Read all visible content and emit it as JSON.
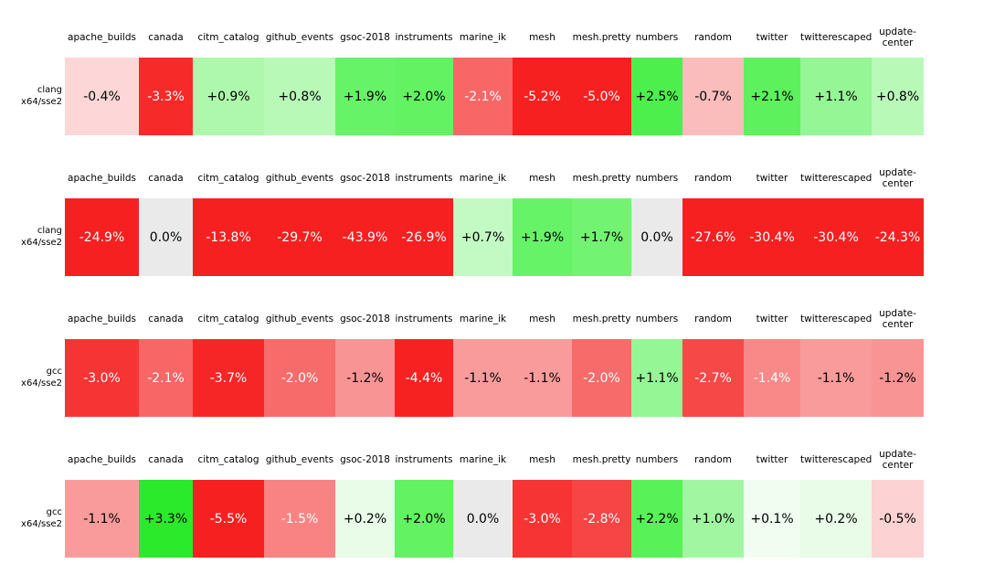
{
  "columns": [
    "apache_builds",
    "canada",
    "citm_catalog",
    "github_events",
    "gsoc-2018",
    "instruments",
    "marine_ik",
    "mesh",
    "mesh.pretty",
    "numbers",
    "random",
    "twitter",
    "twitterescaped",
    "update-center"
  ],
  "tables": [
    {
      "row_label_lines": [
        "clang",
        "x64/sse2"
      ],
      "cells": [
        {
          "text": "-0.4%",
          "bg": "#fdd7d7",
          "fg": "#000000"
        },
        {
          "text": "-3.3%",
          "bg": "#f72a2a",
          "fg": "#ffffff"
        },
        {
          "text": "+0.9%",
          "bg": "#adf8ad",
          "fg": "#000000"
        },
        {
          "text": "+0.8%",
          "bg": "#b8f9b8",
          "fg": "#000000"
        },
        {
          "text": "+1.9%",
          "bg": "#67f367",
          "fg": "#000000"
        },
        {
          "text": "+2.0%",
          "bg": "#62f262",
          "fg": "#000000"
        },
        {
          "text": "-2.1%",
          "bg": "#f86666",
          "fg": "#ffffff"
        },
        {
          "text": "-5.2%",
          "bg": "#f62020",
          "fg": "#ffffff"
        },
        {
          "text": "-5.0%",
          "bg": "#f62020",
          "fg": "#ffffff"
        },
        {
          "text": "+2.5%",
          "bg": "#4def4d",
          "fg": "#000000"
        },
        {
          "text": "-0.7%",
          "bg": "#fbbcbc",
          "fg": "#000000"
        },
        {
          "text": "+2.1%",
          "bg": "#5df15d",
          "fg": "#000000"
        },
        {
          "text": "+1.1%",
          "bg": "#95f695",
          "fg": "#000000"
        },
        {
          "text": "+0.8%",
          "bg": "#b8f9b8",
          "fg": "#000000"
        }
      ]
    },
    {
      "row_label_lines": [
        "clang",
        "x64/sse2"
      ],
      "cells": [
        {
          "text": "-24.9%",
          "bg": "#f62020",
          "fg": "#ffffff"
        },
        {
          "text": "0.0%",
          "bg": "#eaeaea",
          "fg": "#000000"
        },
        {
          "text": "-13.8%",
          "bg": "#f62020",
          "fg": "#ffffff"
        },
        {
          "text": "-29.7%",
          "bg": "#f62020",
          "fg": "#ffffff"
        },
        {
          "text": "-43.9%",
          "bg": "#f62020",
          "fg": "#ffffff"
        },
        {
          "text": "-26.9%",
          "bg": "#f62020",
          "fg": "#ffffff"
        },
        {
          "text": "+0.7%",
          "bg": "#c3f9c3",
          "fg": "#000000"
        },
        {
          "text": "+1.9%",
          "bg": "#67f367",
          "fg": "#000000"
        },
        {
          "text": "+1.7%",
          "bg": "#72f472",
          "fg": "#000000"
        },
        {
          "text": "0.0%",
          "bg": "#eaeaea",
          "fg": "#000000"
        },
        {
          "text": "-27.6%",
          "bg": "#f62020",
          "fg": "#ffffff"
        },
        {
          "text": "-30.4%",
          "bg": "#f62020",
          "fg": "#ffffff"
        },
        {
          "text": "-30.4%",
          "bg": "#f62020",
          "fg": "#ffffff"
        },
        {
          "text": "-24.3%",
          "bg": "#f62020",
          "fg": "#ffffff"
        }
      ]
    },
    {
      "row_label_lines": [
        "gcc",
        "x64/sse2"
      ],
      "cells": [
        {
          "text": "-3.0%",
          "bg": "#f73434",
          "fg": "#ffffff"
        },
        {
          "text": "-2.1%",
          "bg": "#f86666",
          "fg": "#ffffff"
        },
        {
          "text": "-3.7%",
          "bg": "#f72626",
          "fg": "#ffffff"
        },
        {
          "text": "-2.0%",
          "bg": "#f86b6b",
          "fg": "#ffffff"
        },
        {
          "text": "-1.2%",
          "bg": "#f99494",
          "fg": "#000000"
        },
        {
          "text": "-4.4%",
          "bg": "#f62222",
          "fg": "#ffffff"
        },
        {
          "text": "-1.1%",
          "bg": "#fa9b9b",
          "fg": "#000000"
        },
        {
          "text": "-1.1%",
          "bg": "#fa9b9b",
          "fg": "#000000"
        },
        {
          "text": "-2.0%",
          "bg": "#f86b6b",
          "fg": "#ffffff"
        },
        {
          "text": "+1.1%",
          "bg": "#95f695",
          "fg": "#000000"
        },
        {
          "text": "-2.7%",
          "bg": "#f74848",
          "fg": "#ffffff"
        },
        {
          "text": "-1.4%",
          "bg": "#f98888",
          "fg": "#ffffff"
        },
        {
          "text": "-1.1%",
          "bg": "#fa9b9b",
          "fg": "#000000"
        },
        {
          "text": "-1.2%",
          "bg": "#f99494",
          "fg": "#000000"
        }
      ]
    },
    {
      "row_label_lines": [
        "gcc",
        "x64/sse2"
      ],
      "cells": [
        {
          "text": "-1.1%",
          "bg": "#fa9b9b",
          "fg": "#000000"
        },
        {
          "text": "+3.3%",
          "bg": "#2be92b",
          "fg": "#000000"
        },
        {
          "text": "-5.5%",
          "bg": "#f62020",
          "fg": "#ffffff"
        },
        {
          "text": "-1.5%",
          "bg": "#f98383",
          "fg": "#ffffff"
        },
        {
          "text": "+0.2%",
          "bg": "#e8fce8",
          "fg": "#000000"
        },
        {
          "text": "+2.0%",
          "bg": "#62f262",
          "fg": "#000000"
        },
        {
          "text": "0.0%",
          "bg": "#eaeaea",
          "fg": "#000000"
        },
        {
          "text": "-3.0%",
          "bg": "#f73434",
          "fg": "#ffffff"
        },
        {
          "text": "-2.8%",
          "bg": "#f74444",
          "fg": "#ffffff"
        },
        {
          "text": "+2.2%",
          "bg": "#58f158",
          "fg": "#000000"
        },
        {
          "text": "+1.0%",
          "bg": "#a1f7a1",
          "fg": "#000000"
        },
        {
          "text": "+0.1%",
          "bg": "#f0fdf0",
          "fg": "#000000"
        },
        {
          "text": "+0.2%",
          "bg": "#e8fce8",
          "fg": "#000000"
        },
        {
          "text": "-0.5%",
          "bg": "#fcd2d2",
          "fg": "#000000"
        }
      ]
    }
  ],
  "chart_data": [
    {
      "type": "heatmap",
      "title": "",
      "row_label": "clang x64/sse2",
      "categories": [
        "apache_builds",
        "canada",
        "citm_catalog",
        "github_events",
        "gsoc-2018",
        "instruments",
        "marine_ik",
        "mesh",
        "mesh.pretty",
        "numbers",
        "random",
        "twitter",
        "twitterescaped",
        "update-center"
      ],
      "values_percent": [
        -0.4,
        -3.3,
        0.9,
        0.8,
        1.9,
        2.0,
        -2.1,
        -5.2,
        -5.0,
        2.5,
        -0.7,
        2.1,
        1.1,
        0.8
      ],
      "colormap": "red-negative / gray-zero / green-positive"
    },
    {
      "type": "heatmap",
      "title": "",
      "row_label": "clang x64/sse2",
      "categories": [
        "apache_builds",
        "canada",
        "citm_catalog",
        "github_events",
        "gsoc-2018",
        "instruments",
        "marine_ik",
        "mesh",
        "mesh.pretty",
        "numbers",
        "random",
        "twitter",
        "twitterescaped",
        "update-center"
      ],
      "values_percent": [
        -24.9,
        0.0,
        -13.8,
        -29.7,
        -43.9,
        -26.9,
        0.7,
        1.9,
        1.7,
        0.0,
        -27.6,
        -30.4,
        -30.4,
        -24.3
      ],
      "colormap": "red-negative / gray-zero / green-positive"
    },
    {
      "type": "heatmap",
      "title": "",
      "row_label": "gcc x64/sse2",
      "categories": [
        "apache_builds",
        "canada",
        "citm_catalog",
        "github_events",
        "gsoc-2018",
        "instruments",
        "marine_ik",
        "mesh",
        "mesh.pretty",
        "numbers",
        "random",
        "twitter",
        "twitterescaped",
        "update-center"
      ],
      "values_percent": [
        -3.0,
        -2.1,
        -3.7,
        -2.0,
        -1.2,
        -4.4,
        -1.1,
        -1.1,
        -2.0,
        1.1,
        -2.7,
        -1.4,
        -1.1,
        -1.2
      ],
      "colormap": "red-negative / gray-zero / green-positive"
    },
    {
      "type": "heatmap",
      "title": "",
      "row_label": "gcc x64/sse2",
      "categories": [
        "apache_builds",
        "canada",
        "citm_catalog",
        "github_events",
        "gsoc-2018",
        "instruments",
        "marine_ik",
        "mesh",
        "mesh.pretty",
        "numbers",
        "random",
        "twitter",
        "twitterescaped",
        "update-center"
      ],
      "values_percent": [
        -1.1,
        3.3,
        -5.5,
        -1.5,
        0.2,
        2.0,
        0.0,
        -3.0,
        -2.8,
        2.2,
        1.0,
        0.1,
        0.2,
        -0.5
      ],
      "colormap": "red-negative / gray-zero / green-positive"
    }
  ]
}
